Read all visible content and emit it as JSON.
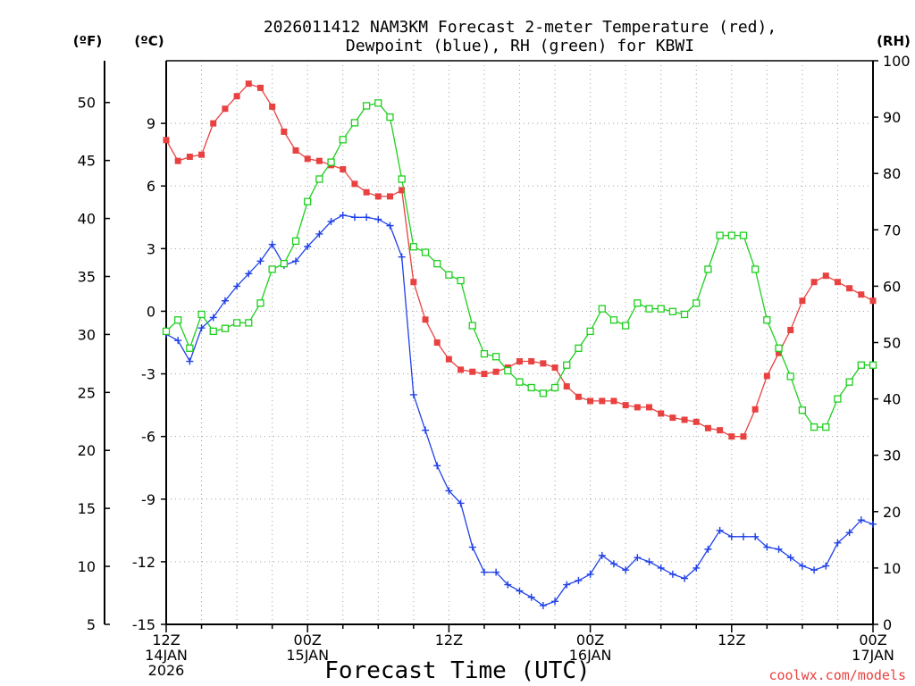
{
  "chart_data": {
    "type": "line",
    "title_line1": "2026011412 NAM3KM Forecast 2-meter Temperature (red),",
    "title_line2": "Dewpoint (blue), RH (green) for KBWI",
    "xlabel": "Forecast Time (UTC)",
    "credit": "coolwx.com/models",
    "left_outer_unit": "(ºF)",
    "left_inner_unit": "(ºC)",
    "right_unit": "(RH)",
    "xlim": [
      0,
      60
    ],
    "ylim_c": [
      -15,
      12
    ],
    "ylim_rh": [
      0,
      100
    ],
    "c_ticks": [
      "9",
      "6",
      "3",
      "0",
      "-3",
      "-6",
      "-9",
      "-12",
      "-15"
    ],
    "c_tick_values": [
      9,
      6,
      3,
      0,
      -3,
      -6,
      -9,
      -12,
      -15
    ],
    "f_ticks": [
      "50",
      "45",
      "40",
      "35",
      "30",
      "25",
      "20",
      "15",
      "10",
      "5"
    ],
    "f_tick_values": [
      50,
      45,
      40,
      35,
      30,
      25,
      20,
      15,
      10,
      5
    ],
    "rh_ticks": [
      "100",
      "90",
      "80",
      "70",
      "60",
      "50",
      "40",
      "30",
      "20",
      "10",
      "0"
    ],
    "rh_tick_values": [
      100,
      90,
      80,
      70,
      60,
      50,
      40,
      30,
      20,
      10,
      0
    ],
    "x_ticks": [
      {
        "hour": 0,
        "line1": "12Z",
        "line2": "14JAN",
        "line3": "2026"
      },
      {
        "hour": 12,
        "line1": "00Z",
        "line2": "15JAN",
        "line3": ""
      },
      {
        "hour": 24,
        "line1": "12Z",
        "line2": "",
        "line3": ""
      },
      {
        "hour": 36,
        "line1": "00Z",
        "line2": "16JAN",
        "line3": ""
      },
      {
        "hour": 48,
        "line1": "12Z",
        "line2": "",
        "line3": ""
      },
      {
        "hour": 60,
        "line1": "00Z",
        "line2": "17JAN",
        "line3": ""
      }
    ],
    "x_hours": [
      0,
      1,
      2,
      3,
      4,
      5,
      6,
      7,
      8,
      9,
      10,
      11,
      12,
      13,
      14,
      15,
      16,
      17,
      18,
      19,
      20,
      21,
      22,
      23,
      24,
      25,
      26,
      27,
      28,
      29,
      30,
      31,
      32,
      33,
      34,
      35,
      36,
      37,
      38,
      39,
      40,
      41,
      42,
      43,
      44,
      45,
      46,
      47,
      48,
      49,
      50,
      51,
      52,
      53,
      54,
      55,
      56,
      57,
      58,
      59,
      60
    ],
    "series": [
      {
        "name": "2-meter Temperature",
        "units": "C",
        "axis": "temp",
        "color": "#e8413f",
        "marker": "filled-square",
        "values": [
          8.2,
          7.2,
          7.4,
          7.5,
          9.0,
          9.7,
          10.3,
          10.9,
          10.7,
          9.8,
          8.6,
          7.7,
          7.3,
          7.2,
          7.0,
          6.8,
          6.1,
          5.7,
          5.5,
          5.5,
          5.8,
          1.4,
          -0.4,
          -1.5,
          -2.3,
          -2.8,
          -2.9,
          -3.0,
          -2.9,
          -2.7,
          -2.4,
          -2.4,
          -2.5,
          -2.7,
          -3.6,
          -4.1,
          -4.3,
          -4.3,
          -4.3,
          -4.5,
          -4.6,
          -4.6,
          -4.9,
          -5.1,
          -5.2,
          -5.3,
          -5.6,
          -5.7,
          -6.0,
          -6.0,
          -4.7,
          -3.1,
          -2.0,
          -0.9,
          0.5,
          1.4,
          1.7,
          1.4,
          1.1,
          0.8,
          0.5
        ]
      },
      {
        "name": "Dewpoint",
        "units": "C",
        "axis": "temp",
        "color": "#2040e8",
        "marker": "plus",
        "values": [
          -1.1,
          -1.4,
          -2.4,
          -0.8,
          -0.3,
          0.5,
          1.2,
          1.8,
          2.4,
          3.2,
          2.2,
          2.4,
          3.1,
          3.7,
          4.3,
          4.6,
          4.5,
          4.5,
          4.4,
          4.1,
          2.6,
          -4.0,
          -5.7,
          -7.4,
          -8.6,
          -9.2,
          -11.3,
          -12.5,
          -12.5,
          -13.1,
          -13.4,
          -13.7,
          -14.1,
          -13.9,
          -13.1,
          -12.9,
          -12.6,
          -11.7,
          -12.1,
          -12.4,
          -11.8,
          -12.0,
          -12.3,
          -12.6,
          -12.8,
          -12.3,
          -11.4,
          -10.5,
          -10.8,
          -10.8,
          -10.8,
          -11.3,
          -11.4,
          -11.8,
          -12.2,
          -12.4,
          -12.2,
          -11.1,
          -10.6,
          -10.0,
          -10.2
        ]
      },
      {
        "name": "RH",
        "units": "%",
        "axis": "rh",
        "color": "#1ecf1e",
        "marker": "open-square",
        "values": [
          52,
          54,
          49,
          55,
          52,
          52.5,
          53.5,
          53.5,
          57,
          63,
          64,
          68,
          75,
          79,
          82,
          86,
          89,
          92,
          92.5,
          90,
          79,
          67,
          66,
          64,
          62,
          61,
          53,
          48,
          47.5,
          45,
          43,
          42,
          41,
          42,
          46,
          49,
          52,
          56,
          54,
          53,
          57,
          56,
          56,
          55.5,
          55,
          57,
          63,
          69,
          69,
          69,
          63,
          54,
          49,
          44,
          38,
          35,
          35,
          40,
          43,
          46,
          46
        ]
      }
    ]
  }
}
